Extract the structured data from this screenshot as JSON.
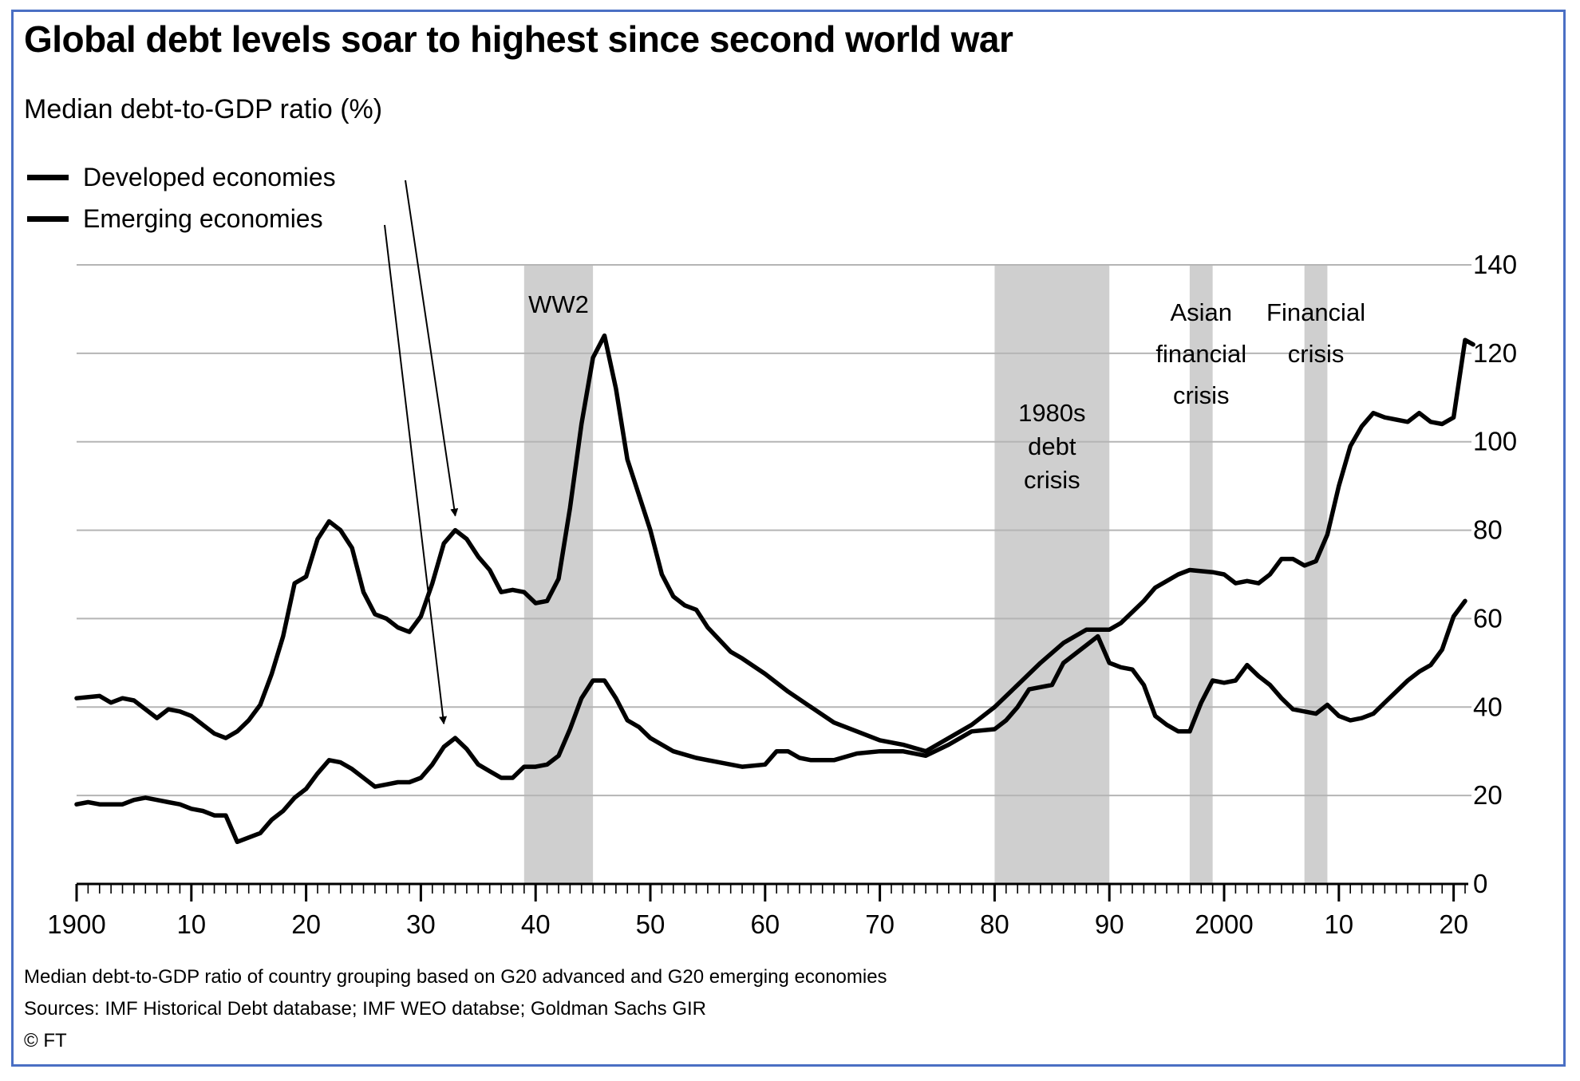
{
  "chart_data": {
    "type": "line",
    "title": "Global debt levels soar to highest since second world war",
    "subtitle": "Median debt-to-GDP ratio (%)",
    "ylim": [
      0,
      140
    ],
    "xlim": [
      1900,
      2021
    ],
    "y_ticks": [
      0,
      20,
      40,
      60,
      80,
      100,
      120,
      140
    ],
    "y_axis_position": "right",
    "x_ticks": [
      {
        "year": 1900,
        "label": "1900"
      },
      {
        "year": 1910,
        "label": "10"
      },
      {
        "year": 1920,
        "label": "20"
      },
      {
        "year": 1930,
        "label": "30"
      },
      {
        "year": 1940,
        "label": "40"
      },
      {
        "year": 1950,
        "label": "50"
      },
      {
        "year": 1960,
        "label": "60"
      },
      {
        "year": 1970,
        "label": "70"
      },
      {
        "year": 1980,
        "label": "80"
      },
      {
        "year": 1990,
        "label": "90"
      },
      {
        "year": 2000,
        "label": "2000"
      },
      {
        "year": 2010,
        "label": "10"
      },
      {
        "year": 2020,
        "label": "20"
      }
    ],
    "grid": "horizontal",
    "legend_position": "top-left",
    "series": [
      {
        "name": "Developed economies",
        "color": "#000000",
        "points": [
          [
            1900,
            42
          ],
          [
            1902,
            42.5
          ],
          [
            1903,
            41
          ],
          [
            1904,
            42
          ],
          [
            1905,
            41.5
          ],
          [
            1906,
            39.5
          ],
          [
            1907,
            37.5
          ],
          [
            1908,
            39.5
          ],
          [
            1909,
            39
          ],
          [
            1910,
            38
          ],
          [
            1911,
            36
          ],
          [
            1912,
            34
          ],
          [
            1913,
            33
          ],
          [
            1914,
            34.5
          ],
          [
            1915,
            37
          ],
          [
            1916,
            40.5
          ],
          [
            1917,
            47.5
          ],
          [
            1918,
            56
          ],
          [
            1919,
            68
          ],
          [
            1920,
            69.5
          ],
          [
            1921,
            78
          ],
          [
            1922,
            82
          ],
          [
            1923,
            80
          ],
          [
            1924,
            76
          ],
          [
            1925,
            66
          ],
          [
            1926,
            61
          ],
          [
            1927,
            60
          ],
          [
            1928,
            58
          ],
          [
            1929,
            57
          ],
          [
            1930,
            60.5
          ],
          [
            1931,
            68
          ],
          [
            1932,
            77
          ],
          [
            1933,
            80
          ],
          [
            1934,
            78
          ],
          [
            1935,
            74
          ],
          [
            1936,
            71
          ],
          [
            1937,
            66
          ],
          [
            1938,
            66.5
          ],
          [
            1939,
            66
          ],
          [
            1940,
            63.5
          ],
          [
            1941,
            64
          ],
          [
            1942,
            69
          ],
          [
            1943,
            85
          ],
          [
            1944,
            104
          ],
          [
            1945,
            119
          ],
          [
            1946,
            124
          ],
          [
            1947,
            112
          ],
          [
            1948,
            96
          ],
          [
            1949,
            88
          ],
          [
            1950,
            80
          ],
          [
            1951,
            70
          ],
          [
            1952,
            65
          ],
          [
            1953,
            63
          ],
          [
            1954,
            62
          ],
          [
            1955,
            58
          ],
          [
            1957,
            52.5
          ],
          [
            1958,
            51
          ],
          [
            1960,
            47.5
          ],
          [
            1962,
            43.5
          ],
          [
            1964,
            40
          ],
          [
            1966,
            36.5
          ],
          [
            1968,
            34.5
          ],
          [
            1970,
            32.5
          ],
          [
            1972,
            31.5
          ],
          [
            1974,
            30
          ],
          [
            1976,
            33
          ],
          [
            1978,
            36
          ],
          [
            1980,
            40
          ],
          [
            1982,
            45
          ],
          [
            1984,
            50
          ],
          [
            1986,
            54.5
          ],
          [
            1988,
            57.5
          ],
          [
            1990,
            57.5
          ],
          [
            1991,
            59
          ],
          [
            1993,
            64
          ],
          [
            1994,
            67
          ],
          [
            1996,
            70
          ],
          [
            1997,
            71
          ],
          [
            1999,
            70.5
          ],
          [
            2000,
            70
          ],
          [
            2001,
            68
          ],
          [
            2002,
            68.5
          ],
          [
            2003,
            68
          ],
          [
            2004,
            70
          ],
          [
            2005,
            73.5
          ],
          [
            2006,
            73.5
          ],
          [
            2007,
            72
          ],
          [
            2008,
            73
          ],
          [
            2009,
            79
          ],
          [
            2010,
            90
          ],
          [
            2011,
            99
          ],
          [
            2012,
            103.5
          ],
          [
            2013,
            106.5
          ],
          [
            2014,
            105.5
          ],
          [
            2015,
            105
          ],
          [
            2016,
            104.5
          ],
          [
            2017,
            106.5
          ],
          [
            2018,
            104.5
          ],
          [
            2019,
            104
          ],
          [
            2020,
            105.5
          ],
          [
            2021,
            123
          ],
          [
            2021.7,
            122
          ]
        ]
      },
      {
        "name": "Emerging economies",
        "color": "#000000",
        "points": [
          [
            1900,
            18
          ],
          [
            1901,
            18.5
          ],
          [
            1902,
            18
          ],
          [
            1903,
            18
          ],
          [
            1904,
            18
          ],
          [
            1905,
            19
          ],
          [
            1906,
            19.5
          ],
          [
            1907,
            19
          ],
          [
            1908,
            18.5
          ],
          [
            1909,
            18
          ],
          [
            1910,
            17
          ],
          [
            1911,
            16.5
          ],
          [
            1912,
            15.5
          ],
          [
            1913,
            15.5
          ],
          [
            1914,
            9.5
          ],
          [
            1915,
            10.5
          ],
          [
            1916,
            11.5
          ],
          [
            1917,
            14.5
          ],
          [
            1918,
            16.5
          ],
          [
            1919,
            19.5
          ],
          [
            1920,
            21.5
          ],
          [
            1921,
            25
          ],
          [
            1922,
            28
          ],
          [
            1923,
            27.5
          ],
          [
            1924,
            26
          ],
          [
            1925,
            24
          ],
          [
            1926,
            22
          ],
          [
            1927,
            22.5
          ],
          [
            1928,
            23
          ],
          [
            1929,
            23
          ],
          [
            1930,
            24
          ],
          [
            1931,
            27
          ],
          [
            1932,
            31
          ],
          [
            1933,
            33
          ],
          [
            1934,
            30.5
          ],
          [
            1935,
            27
          ],
          [
            1936,
            25.5
          ],
          [
            1937,
            24
          ],
          [
            1938,
            24
          ],
          [
            1939,
            26.5
          ],
          [
            1940,
            26.5
          ],
          [
            1941,
            27
          ],
          [
            1942,
            29
          ],
          [
            1943,
            35
          ],
          [
            1944,
            42
          ],
          [
            1945,
            46
          ],
          [
            1946,
            46
          ],
          [
            1947,
            42
          ],
          [
            1948,
            37
          ],
          [
            1949,
            35.5
          ],
          [
            1950,
            33
          ],
          [
            1952,
            30
          ],
          [
            1954,
            28.5
          ],
          [
            1956,
            27.5
          ],
          [
            1958,
            26.5
          ],
          [
            1960,
            27
          ],
          [
            1961,
            30
          ],
          [
            1962,
            30
          ],
          [
            1963,
            28.5
          ],
          [
            1964,
            28
          ],
          [
            1966,
            28
          ],
          [
            1968,
            29.5
          ],
          [
            1970,
            30
          ],
          [
            1972,
            30
          ],
          [
            1974,
            29
          ],
          [
            1976,
            31.5
          ],
          [
            1978,
            34.5
          ],
          [
            1980,
            35
          ],
          [
            1981,
            37
          ],
          [
            1982,
            40
          ],
          [
            1983,
            44
          ],
          [
            1984,
            44.5
          ],
          [
            1985,
            45
          ],
          [
            1986,
            50
          ],
          [
            1987,
            52
          ],
          [
            1988,
            54
          ],
          [
            1989,
            56
          ],
          [
            1990,
            50
          ],
          [
            1991,
            49
          ],
          [
            1992,
            48.5
          ],
          [
            1993,
            45
          ],
          [
            1994,
            38
          ],
          [
            1995,
            36
          ],
          [
            1996,
            34.5
          ],
          [
            1997,
            34.5
          ],
          [
            1998,
            41
          ],
          [
            1999,
            46
          ],
          [
            2000,
            45.5
          ],
          [
            2001,
            46
          ],
          [
            2002,
            49.5
          ],
          [
            2003,
            47
          ],
          [
            2004,
            45
          ],
          [
            2005,
            42
          ],
          [
            2006,
            39.5
          ],
          [
            2007,
            39
          ],
          [
            2008,
            38.5
          ],
          [
            2009,
            40.5
          ],
          [
            2010,
            38
          ],
          [
            2011,
            37
          ],
          [
            2012,
            37.5
          ],
          [
            2013,
            38.5
          ],
          [
            2014,
            41
          ],
          [
            2015,
            43.5
          ],
          [
            2016,
            46
          ],
          [
            2017,
            48
          ],
          [
            2018,
            49.5
          ],
          [
            2019,
            53
          ],
          [
            2020,
            60.5
          ],
          [
            2021,
            64
          ]
        ]
      }
    ],
    "shaded_periods": [
      {
        "start": 1939,
        "end": 1945,
        "label": [
          "WW2"
        ]
      },
      {
        "start": 1980,
        "end": 1990,
        "label": [
          "1980s",
          "debt",
          "crisis"
        ]
      },
      {
        "start": 1997,
        "end": 1999,
        "label": [
          "Asian",
          "financial",
          "crisis"
        ]
      },
      {
        "start": 2007,
        "end": 2009,
        "label": [
          "Financial",
          "crisis"
        ]
      }
    ],
    "annotation_arrows": [
      {
        "from_series": "Developed economies",
        "to_point": [
          1933,
          80
        ]
      },
      {
        "from_series": "Emerging economies",
        "to_point": [
          1932,
          33
        ]
      }
    ]
  },
  "legend": {
    "developed_label": "Developed economies",
    "emerging_label": "Emerging economies"
  },
  "footer": {
    "note": "Median debt-to-GDP ratio of country grouping based on G20 advanced and G20 emerging economies",
    "sources": "Sources: IMF Historical Debt database; IMF WEO databse; Goldman Sachs GIR",
    "copyright": "© FT"
  }
}
